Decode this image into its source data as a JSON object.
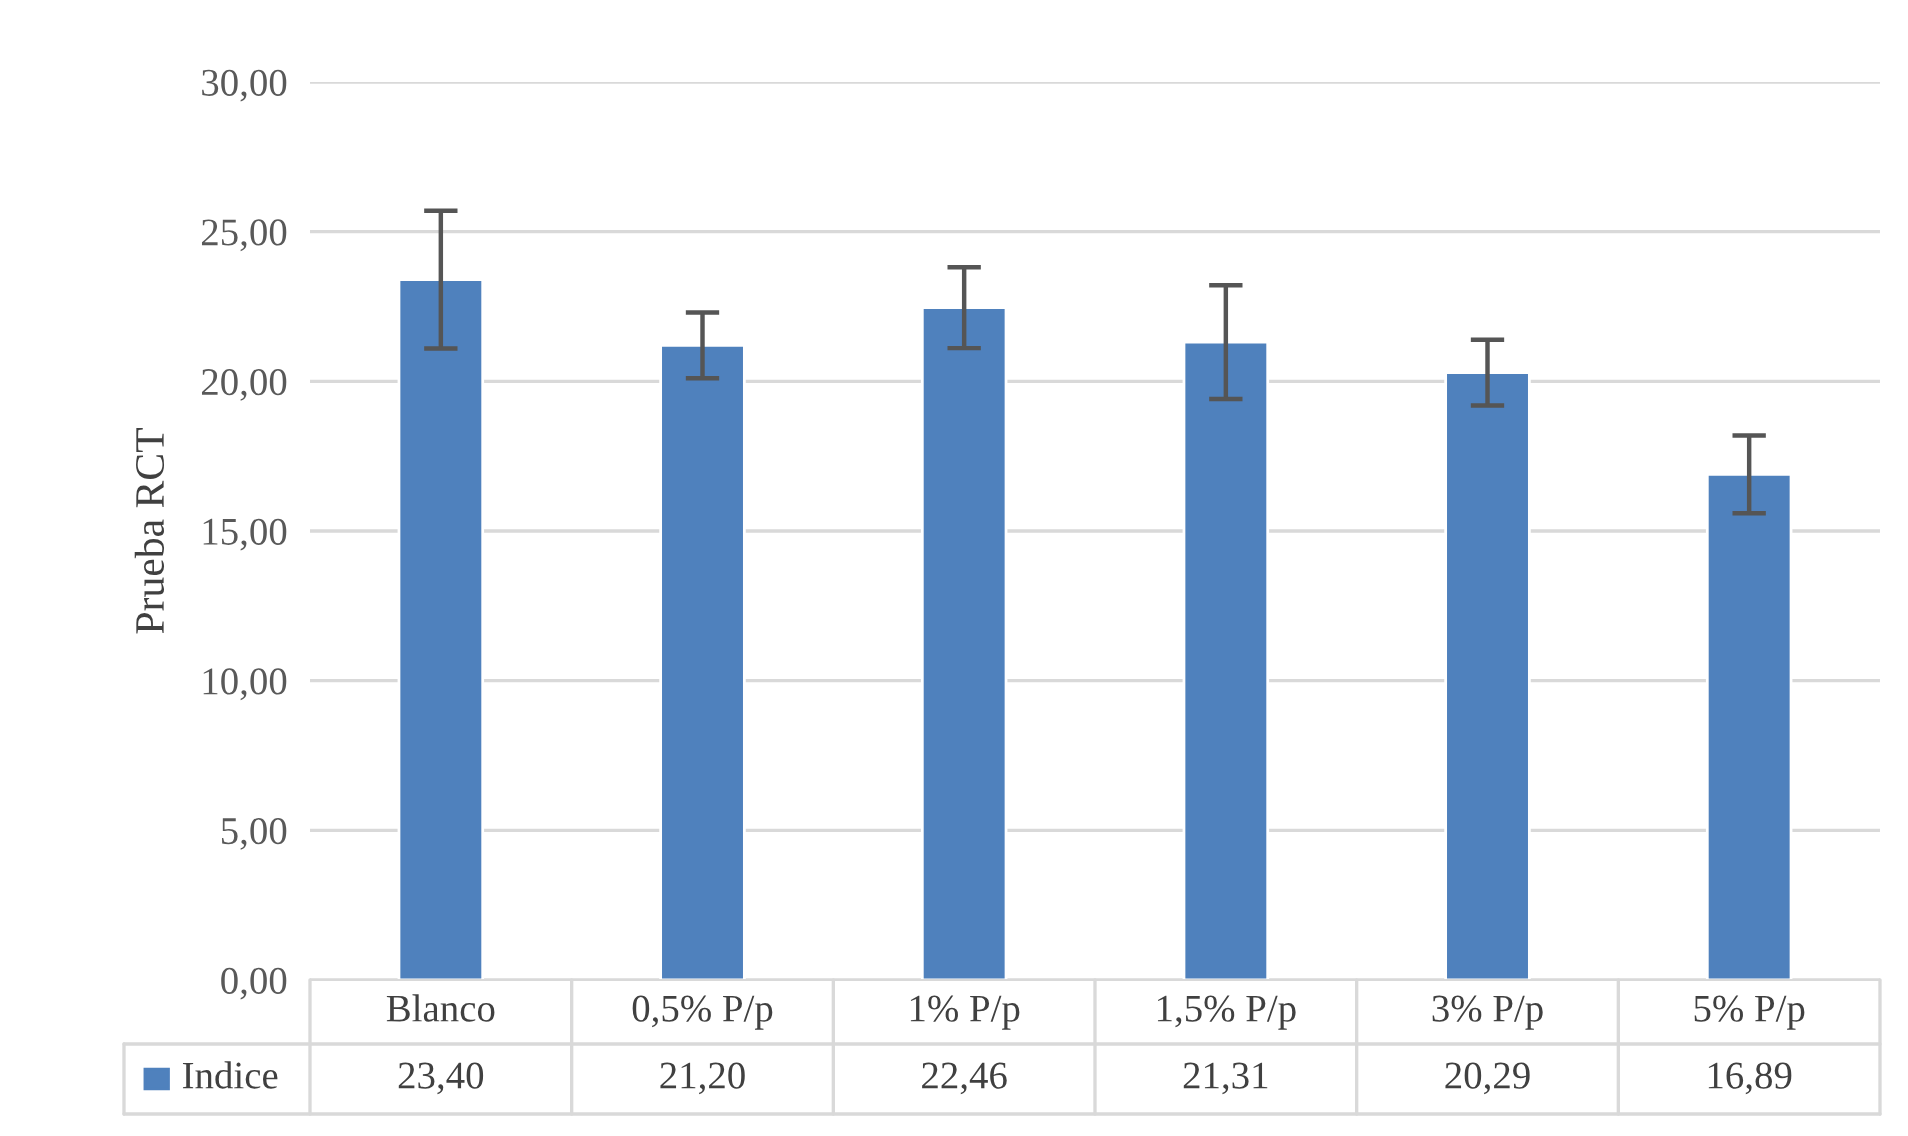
{
  "chart_data": {
    "type": "bar",
    "ylabel": "Prueba RCT",
    "categories": [
      "Blanco",
      "0,5% P/p",
      "1% P/p",
      "1,5% P/p",
      "3% P/p",
      "5% P/p"
    ],
    "series": [
      {
        "name": "Indice",
        "color": "#4f81bd",
        "values": [
          23.4,
          21.2,
          22.46,
          21.31,
          20.29,
          16.89
        ],
        "errors": [
          2.3,
          1.1,
          1.35,
          1.9,
          1.1,
          1.3
        ],
        "value_labels": [
          "23,40",
          "21,20",
          "22,46",
          "21,31",
          "20,29",
          "16,89"
        ]
      }
    ],
    "ylim": [
      0,
      30
    ],
    "yticks": [
      {
        "value": 0,
        "label": "0,00"
      },
      {
        "value": 5,
        "label": "5,00"
      },
      {
        "value": 10,
        "label": "10,00"
      },
      {
        "value": 15,
        "label": "15,00"
      },
      {
        "value": 20,
        "label": "20,00"
      },
      {
        "value": 25,
        "label": "25,00"
      },
      {
        "value": 30,
        "label": "30,00"
      }
    ],
    "grid": "y",
    "legend": "bottom"
  }
}
